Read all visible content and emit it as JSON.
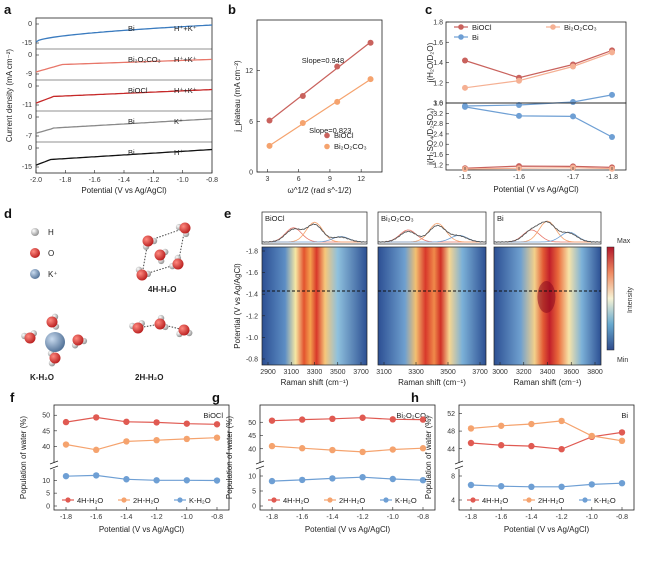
{
  "panels": {
    "a": {
      "label": "a",
      "ylabel": "Current density (mA cm⁻²)",
      "xlabel": "Potential (V vs Ag/AgCl)",
      "xticks": [
        "-2.0",
        "-1.8",
        "-1.6",
        "-1.4",
        "-1.2",
        "-1.0",
        "-0.8"
      ],
      "rows": [
        {
          "name": "Bi",
          "elec": "H⁺+K⁺",
          "color": "#3a7bbf",
          "ticks": [
            "0",
            "-15"
          ]
        },
        {
          "name": "Bi₂O₂CO₃",
          "elec": "H⁺+K⁺",
          "color": "#e8776a",
          "ticks": [
            "0",
            "-9"
          ]
        },
        {
          "name": "BiOCl",
          "elec": "H⁺+K⁺",
          "color": "#c62828",
          "ticks": [
            "0",
            "-11"
          ]
        },
        {
          "name": "Bi",
          "elec": "K⁺",
          "color": "#8a8a8a",
          "ticks": [
            "0",
            "-7"
          ]
        },
        {
          "name": "Bi",
          "elec": "H⁺",
          "color": "#111111",
          "ticks": [
            "0",
            "-15"
          ]
        }
      ]
    },
    "b": {
      "label": "b",
      "ylabel": "j_plateau (mA cm⁻²)",
      "xlabel": "ω^1/2 (rad s^-1/2)",
      "chart_data": {
        "type": "scatter",
        "xlim": [
          2,
          14
        ],
        "ylim": [
          0,
          18
        ],
        "xticks": [
          "3",
          "6",
          "9",
          "12"
        ],
        "yticks": [
          "0",
          "6",
          "12"
        ],
        "series": [
          {
            "name": "BiOCl",
            "color": "#c9625d",
            "x": [
              3.2,
              6.4,
              9.7,
              12.9
            ],
            "y": [
              6.1,
              9.0,
              12.5,
              15.3
            ],
            "slope_label": "Slope=0.948"
          },
          {
            "name": "Bi₂O₂CO₃",
            "color": "#f5a36e",
            "x": [
              3.2,
              6.4,
              9.7,
              12.9
            ],
            "y": [
              3.1,
              5.8,
              8.3,
              11.0
            ],
            "slope_label": "Slope=0.823"
          }
        ]
      }
    },
    "c": {
      "label": "c",
      "xlabel": "Potential (V vs Ag/AgCl)",
      "xticks": [
        "-1.5",
        "-1.6",
        "-1.7",
        "-1.8"
      ],
      "top": {
        "ylabel": "j(H₂O/D₂O)",
        "ylim": [
          1.0,
          1.8
        ],
        "yticks": [
          "1.0",
          "1.2",
          "1.4",
          "1.6",
          "1.8"
        ],
        "series": [
          {
            "name": "BiOCl",
            "color": "#c9625d",
            "y": [
              1.42,
              1.25,
              1.38,
              1.52
            ]
          },
          {
            "name": "Bi₂O₂CO₃",
            "color": "#f5b093",
            "y": [
              1.15,
              1.22,
              1.36,
              1.5
            ]
          },
          {
            "name": "Bi",
            "color": "#6e9fd4",
            "y": [
              0.97,
              0.98,
              1.01,
              1.08
            ]
          }
        ]
      },
      "bottom": {
        "ylabel": "j(H₂SO₄/D₂SO₄)",
        "ylim": [
          1.0,
          3.6
        ],
        "yticks": [
          "1.2",
          "1.6",
          "2.0",
          "2.4",
          "2.8",
          "3.2",
          "3.6"
        ],
        "series": [
          {
            "name": "BiOCl",
            "color": "#c9625d",
            "y": [
              1.07,
              1.15,
              1.14,
              1.1
            ]
          },
          {
            "name": "Bi₂O₂CO₃",
            "color": "#f5b093",
            "y": [
              1.04,
              1.07,
              1.09,
              1.05
            ]
          },
          {
            "name": "Bi",
            "color": "#6e9fd4",
            "y": [
              3.45,
              3.1,
              3.08,
              2.28
            ]
          }
        ]
      }
    },
    "d": {
      "label": "d",
      "legend": [
        {
          "text": "H",
          "color": "#999999"
        },
        {
          "text": "O",
          "color": "#d32f2f"
        },
        {
          "text": "K⁺",
          "color": "#6d8fb5"
        }
      ],
      "names": {
        "four": "4H-H₂O",
        "k": "K-H₂O",
        "two": "2H-H₂O"
      },
      "name_colors": {
        "four": "#c9625d",
        "k": "#6e9fd4",
        "two": "#f5a36e"
      }
    },
    "e": {
      "label": "e",
      "ylabel": "Potential (V vs Ag/AgCl)",
      "xlabel": "Raman shift (cm⁻¹)",
      "yticks": [
        "-1.8",
        "-1.6",
        "-1.4",
        "-1.2",
        "-1.0",
        "-0.8"
      ],
      "maps": [
        {
          "title": "BiOCl",
          "xticks": [
            "2900",
            "3100",
            "3300",
            "3500",
            "3700"
          ]
        },
        {
          "title": "Bi₂O₂CO₃",
          "xticks": [
            "3100",
            "3300",
            "3500",
            "3700"
          ]
        },
        {
          "title": "Bi",
          "xticks": [
            "3000",
            "3200",
            "3400",
            "3600",
            "3800"
          ]
        }
      ],
      "colorbar": {
        "max": "Max",
        "min": "Min",
        "label": "Intensity"
      }
    },
    "pop": [
      {
        "label": "f",
        "title": "BiOCl",
        "ylabel": "Population of water (%)",
        "xlabel": "Potential (V vs Ag/AgCl)",
        "xticks": [
          "-1.8",
          "-1.6",
          "-1.4",
          "-1.2",
          "-1.0",
          "-0.8"
        ],
        "yticks_top": [
          "40",
          "45",
          "50"
        ],
        "yticks_bot": [
          "0",
          "5",
          "10"
        ],
        "upper": [
          35,
          52
        ],
        "lower": [
          0,
          14
        ],
        "series": [
          {
            "name": "4H-H₂O",
            "color": "#e05a52",
            "y": [
              47.8,
              49.3,
              47.9,
              47.7,
              47.3,
              47.1
            ]
          },
          {
            "name": "2H-H₂O",
            "color": "#f5a36e",
            "y": [
              40.6,
              38.9,
              41.6,
              42.0,
              42.4,
              42.8
            ]
          },
          {
            "name": "K-H₂O",
            "color": "#6e9fd4",
            "y": [
              11.6,
              11.9,
              10.4,
              10.0,
              10.0,
              9.9
            ]
          }
        ]
      },
      {
        "label": "g",
        "title": "Bi₂O₂CO₃",
        "ylabel": "Population of water (%)",
        "xlabel": "Potential (V vs Ag/AgCl)",
        "xticks": [
          "-1.8",
          "-1.6",
          "-1.4",
          "-1.2",
          "-1.0",
          "-0.8"
        ],
        "yticks_top": [
          "40",
          "45",
          "50"
        ],
        "yticks_bot": [
          "0",
          "5",
          "10"
        ],
        "upper": [
          35,
          55
        ],
        "lower": [
          0,
          12
        ],
        "series": [
          {
            "name": "4H-H₂O",
            "color": "#e05a52",
            "y": [
              50.6,
              51.0,
              51.3,
              51.7,
              51.1,
              51.0
            ]
          },
          {
            "name": "2H-H₂O",
            "color": "#f5a36e",
            "y": [
              41.0,
              40.2,
              39.5,
              38.8,
              39.7,
              40.2
            ]
          },
          {
            "name": "K-H₂O",
            "color": "#6e9fd4",
            "y": [
              8.3,
              8.7,
              9.2,
              9.6,
              9.0,
              8.6
            ]
          }
        ]
      },
      {
        "label": "h",
        "title": "Bi",
        "ylabel": "Population of water (%)",
        "xlabel": "Potential (V vs Ag/AgCl)",
        "xticks": [
          "-1.8",
          "-1.6",
          "-1.4",
          "-1.2",
          "-1.0",
          "-0.8"
        ],
        "yticks_top": [
          "44",
          "48",
          "52"
        ],
        "yticks_bot": [
          "4",
          "8"
        ],
        "upper": [
          41,
          53
        ],
        "lower": [
          3,
          9
        ],
        "series": [
          {
            "name": "4H-H₂O",
            "color": "#e05a52",
            "y": [
              45.3,
              44.8,
              44.6,
              43.9,
              46.7,
              47.7
            ]
          },
          {
            "name": "2H-H₂O",
            "color": "#f5a36e",
            "y": [
              48.6,
              49.2,
              49.6,
              50.3,
              46.9,
              45.8
            ]
          },
          {
            "name": "K-H₂O",
            "color": "#6e9fd4",
            "y": [
              6.5,
              6.3,
              6.2,
              6.2,
              6.6,
              6.8
            ]
          }
        ]
      }
    ]
  }
}
